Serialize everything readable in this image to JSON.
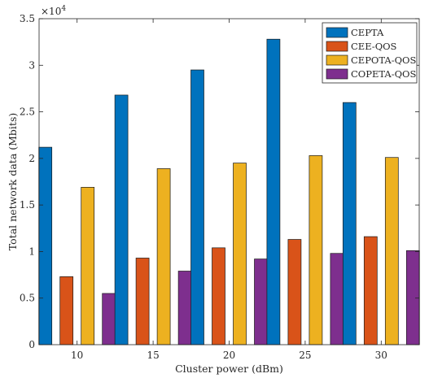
{
  "chart_data": {
    "type": "bar",
    "title": "",
    "xlabel": "Cluster power (dBm)",
    "ylabel": "Total network data (Mbits)",
    "y_exponent_label": "×10",
    "y_exponent_power": "4",
    "y_multiplier": 10000,
    "ylim": [
      0,
      35000
    ],
    "y_ticks": [
      0,
      5000,
      10000,
      15000,
      20000,
      25000,
      30000,
      35000
    ],
    "y_tick_labels": [
      "0",
      "0.5",
      "1",
      "1.5",
      "2",
      "2.5",
      "3",
      "3.5"
    ],
    "categories": [
      "10",
      "15",
      "20",
      "25",
      "30"
    ],
    "series": [
      {
        "name": "CEPTA",
        "color": "#0072BD",
        "values": [
          21200,
          26800,
          29500,
          32800,
          26000
        ]
      },
      {
        "name": "CEE-QOS",
        "color": "#D95319",
        "values": [
          7300,
          9300,
          10400,
          11300,
          11600
        ]
      },
      {
        "name": "CEPOTA-QOS",
        "color": "#EDB120",
        "values": [
          16900,
          18900,
          19500,
          20300,
          20100
        ]
      },
      {
        "name": "COPETA-QOS",
        "color": "#7E2F8E",
        "values": [
          5500,
          7900,
          9200,
          9800,
          10100
        ]
      }
    ],
    "legend_position": "top-right",
    "grid": false
  }
}
